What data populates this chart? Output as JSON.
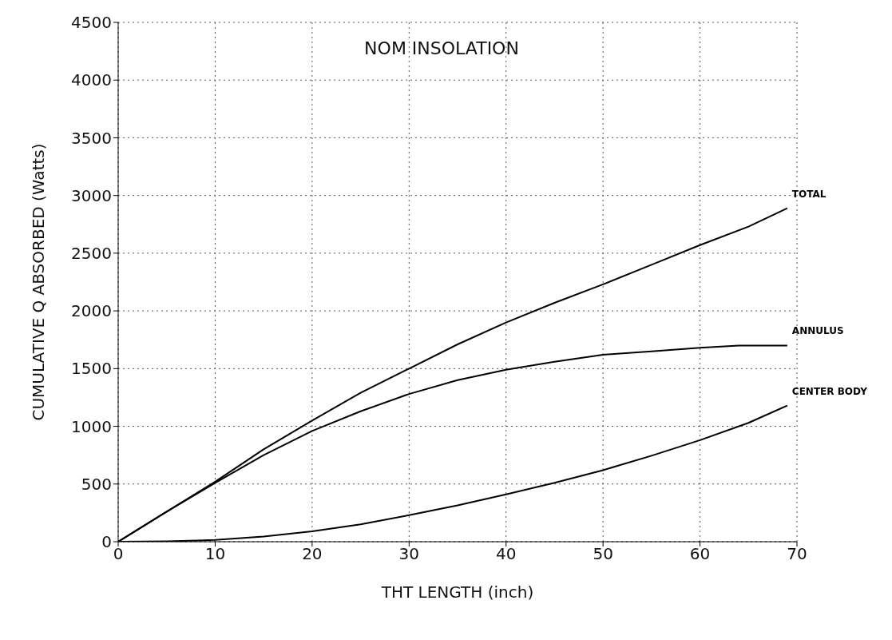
{
  "chart_data": {
    "type": "line",
    "title": "NOM INSOLATION",
    "xlabel": "THT LENGTH (inch)",
    "ylabel": "CUMULATIVE Q ABSORBED (Watts)",
    "xlim": [
      0,
      70
    ],
    "ylim": [
      0,
      4500
    ],
    "xticks": [
      0,
      10,
      20,
      30,
      40,
      50,
      60,
      70
    ],
    "yticks": [
      0,
      500,
      1000,
      1500,
      2000,
      2500,
      3000,
      3500,
      4000,
      4500
    ],
    "grid": true,
    "marker": "none",
    "line_style": "solid",
    "series": [
      {
        "name": "TOTAL",
        "color": "#000000",
        "x": [
          0,
          5,
          10,
          15,
          20,
          25,
          30,
          35,
          40,
          45,
          50,
          55,
          60,
          65,
          69
        ],
        "values": [
          0,
          260,
          520,
          800,
          1050,
          1290,
          1500,
          1710,
          1900,
          2070,
          2230,
          2400,
          2570,
          2730,
          2890
        ]
      },
      {
        "name": "ANNULUS",
        "color": "#000000",
        "x": [
          0,
          5,
          10,
          15,
          20,
          25,
          30,
          35,
          40,
          45,
          50,
          55,
          60,
          64,
          69
        ],
        "values": [
          0,
          260,
          510,
          750,
          960,
          1130,
          1280,
          1400,
          1490,
          1560,
          1620,
          1650,
          1680,
          1700,
          1700
        ]
      },
      {
        "name": "CENTER BODY",
        "color": "#000000",
        "x": [
          0,
          5,
          10,
          15,
          20,
          25,
          30,
          35,
          40,
          45,
          50,
          55,
          60,
          65,
          69
        ],
        "values": [
          0,
          3,
          15,
          45,
          90,
          150,
          230,
          315,
          410,
          510,
          620,
          745,
          880,
          1030,
          1180
        ]
      }
    ]
  }
}
